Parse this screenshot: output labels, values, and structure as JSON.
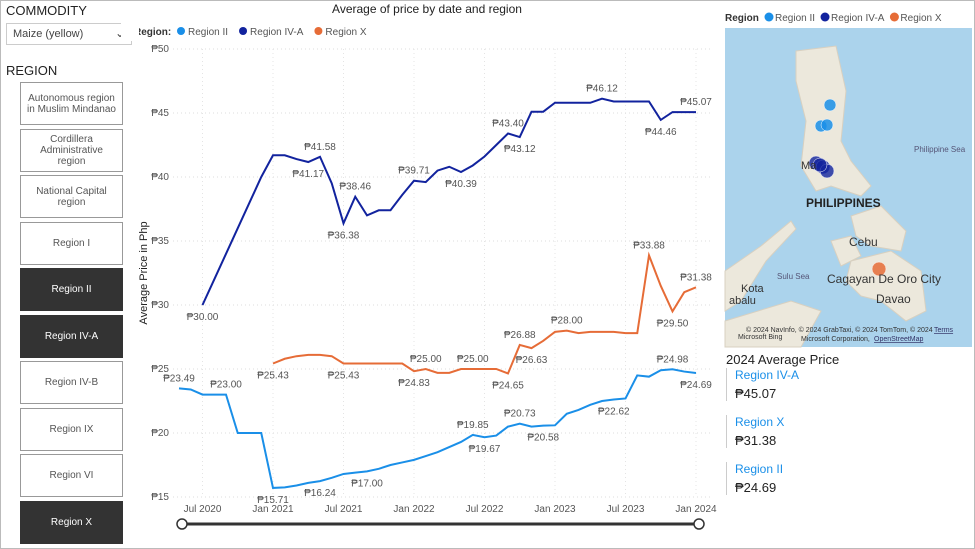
{
  "commodity": {
    "label": "COMMODITY",
    "selected": "Maize (yellow)"
  },
  "region_slicer": {
    "label": "REGION",
    "options": [
      {
        "name": "Autonomous region in Muslim Mindanao",
        "selected": false
      },
      {
        "name": "Cordillera Administrative region",
        "selected": false
      },
      {
        "name": "National Capital region",
        "selected": false
      },
      {
        "name": "Region I",
        "selected": false
      },
      {
        "name": "Region II",
        "selected": true
      },
      {
        "name": "Region IV-A",
        "selected": true
      },
      {
        "name": "Region IV-B",
        "selected": false
      },
      {
        "name": "Region IX",
        "selected": false
      },
      {
        "name": "Region VI",
        "selected": false
      },
      {
        "name": "Region X",
        "selected": true
      }
    ]
  },
  "chart_data": {
    "type": "line",
    "title": "Average of price by date and region",
    "legend_title": "Region:",
    "y_label": "Average Price in Php",
    "grid": true,
    "x": [
      "2020-05",
      "2020-06",
      "2020-07",
      "2020-08",
      "2020-09",
      "2020-10",
      "2020-11",
      "2020-12",
      "2021-01",
      "2021-02",
      "2021-03",
      "2021-04",
      "2021-05",
      "2021-06",
      "2021-07",
      "2021-08",
      "2021-09",
      "2021-10",
      "2021-11",
      "2021-12",
      "2022-01",
      "2022-02",
      "2022-03",
      "2022-04",
      "2022-05",
      "2022-06",
      "2022-07",
      "2022-08",
      "2022-09",
      "2022-10",
      "2022-11",
      "2022-12",
      "2023-01",
      "2023-02",
      "2023-03",
      "2023-04",
      "2023-05",
      "2023-06",
      "2023-07",
      "2023-08",
      "2023-09",
      "2023-10",
      "2023-11",
      "2023-12",
      "2024-01"
    ],
    "xlim": [
      "2020-05",
      "2024-01"
    ],
    "xticks": [
      {
        "value": "2020-07",
        "label": "Jul 2020"
      },
      {
        "value": "2021-01",
        "label": "Jan 2021"
      },
      {
        "value": "2021-07",
        "label": "Jul 2021"
      },
      {
        "value": "2022-01",
        "label": "Jan 2022"
      },
      {
        "value": "2022-07",
        "label": "Jul 2022"
      },
      {
        "value": "2023-01",
        "label": "Jan 2023"
      },
      {
        "value": "2023-07",
        "label": "Jul 2023"
      },
      {
        "value": "2024-01",
        "label": "Jan 2024"
      }
    ],
    "ylim": [
      15,
      50
    ],
    "yticks": [
      {
        "value": 15,
        "label": "₱15"
      },
      {
        "value": 20,
        "label": "₱20"
      },
      {
        "value": 25,
        "label": "₱25"
      },
      {
        "value": 30,
        "label": "₱30"
      },
      {
        "value": 35,
        "label": "₱35"
      },
      {
        "value": 40,
        "label": "₱40"
      },
      {
        "value": 45,
        "label": "₱45"
      },
      {
        "value": 50,
        "label": "₱50"
      }
    ],
    "series": [
      {
        "name": "Region II",
        "color": "#1a8fe8",
        "values": [
          23.49,
          23.4,
          23.0,
          23.0,
          23.0,
          20.0,
          20.0,
          20.0,
          15.71,
          15.75,
          15.9,
          16.1,
          16.24,
          16.5,
          16.8,
          16.9,
          17.0,
          17.2,
          17.5,
          17.7,
          17.9,
          18.2,
          18.5,
          18.9,
          19.3,
          19.85,
          19.67,
          19.8,
          20.5,
          20.73,
          20.5,
          20.58,
          20.6,
          21.5,
          21.8,
          22.2,
          22.5,
          22.62,
          22.7,
          24.5,
          24.4,
          24.9,
          24.98,
          24.8,
          24.69
        ],
        "value_labels": [
          "₱23.49",
          null,
          null,
          null,
          "₱23.00",
          null,
          null,
          null,
          "₱15.71",
          null,
          null,
          null,
          "₱16.24",
          null,
          null,
          null,
          "₱17.00",
          null,
          null,
          null,
          null,
          null,
          null,
          null,
          null,
          "₱19.85",
          "₱19.67",
          null,
          null,
          "₱20.73",
          null,
          "₱20.58",
          null,
          null,
          null,
          null,
          null,
          "₱22.62",
          null,
          null,
          null,
          null,
          "₱24.98",
          null,
          "₱24.69"
        ]
      },
      {
        "name": "Region IV-A",
        "color": "#12239e",
        "values": [
          null,
          null,
          30.0,
          32.0,
          34.0,
          36.0,
          38.0,
          40.0,
          41.7,
          41.7,
          41.4,
          41.17,
          41.58,
          39.5,
          36.38,
          38.46,
          37.0,
          37.4,
          37.4,
          38.6,
          39.71,
          39.6,
          40.5,
          40.8,
          40.39,
          40.9,
          41.6,
          42.5,
          43.4,
          43.12,
          45.1,
          45.1,
          45.8,
          45.8,
          45.8,
          45.8,
          46.12,
          45.9,
          45.9,
          45.9,
          45.9,
          44.46,
          45.07,
          45.07,
          45.07
        ],
        "value_labels": [
          null,
          null,
          "₱30.00",
          null,
          null,
          null,
          null,
          null,
          null,
          null,
          null,
          "₱41.17",
          "₱41.58",
          null,
          "₱36.38",
          "₱38.46",
          null,
          null,
          null,
          null,
          "₱39.71",
          null,
          null,
          null,
          "₱40.39",
          null,
          null,
          null,
          "₱43.40",
          "₱43.12",
          null,
          null,
          null,
          null,
          null,
          null,
          "₱46.12",
          null,
          null,
          null,
          null,
          "₱44.46",
          null,
          null,
          "₱45.07"
        ]
      },
      {
        "name": "Region X",
        "color": "#e66c37",
        "values": [
          null,
          null,
          null,
          null,
          null,
          null,
          null,
          null,
          25.43,
          25.8,
          26.0,
          26.1,
          26.1,
          26.0,
          25.43,
          25.43,
          25.43,
          25.43,
          25.43,
          25.43,
          24.83,
          25.0,
          24.7,
          24.7,
          25.0,
          25.0,
          25.0,
          25.0,
          24.65,
          26.88,
          26.63,
          27.2,
          27.9,
          28.0,
          27.8,
          27.9,
          27.9,
          27.9,
          27.8,
          27.8,
          33.88,
          31.5,
          29.5,
          31.0,
          31.38
        ],
        "value_labels": [
          null,
          null,
          null,
          null,
          null,
          null,
          null,
          null,
          "₱25.43",
          null,
          null,
          null,
          null,
          null,
          "₱25.43",
          null,
          null,
          null,
          null,
          null,
          "₱24.83",
          "₱25.00",
          null,
          null,
          null,
          "₱25.00",
          null,
          null,
          "₱24.65",
          "₱26.88",
          "₱26.63",
          null,
          null,
          "₱28.00",
          null,
          null,
          null,
          null,
          null,
          null,
          "₱33.88",
          null,
          "₱29.50",
          null,
          "₱31.38"
        ]
      }
    ]
  },
  "map": {
    "legend_title": "Region",
    "labels": {
      "sea1": "Philippine Sea",
      "country": "PHILIPPINES",
      "cebu": "Cebu",
      "sulu": "Sulu Sea",
      "cdo": "Cagayan De Oro City",
      "davao": "Davao",
      "kota": "Kota",
      "abalu": "abalu",
      "manila": "Ma"
    },
    "attribution": "© 2024 NavInfo, © 2024 GrabTaxi, © 2024 TomTom, © 2024",
    "terms": "Terms",
    "corp": "Microsoft Corporation,",
    "osm": "OpenStreetMap",
    "bing": "Microsoft Bing"
  },
  "cards": {
    "title": "2024 Average Price",
    "items": [
      {
        "name": "Region IV-A",
        "value": "₱45.07"
      },
      {
        "name": "Region X",
        "value": "₱31.38"
      },
      {
        "name": "Region II",
        "value": "₱24.69"
      }
    ]
  }
}
